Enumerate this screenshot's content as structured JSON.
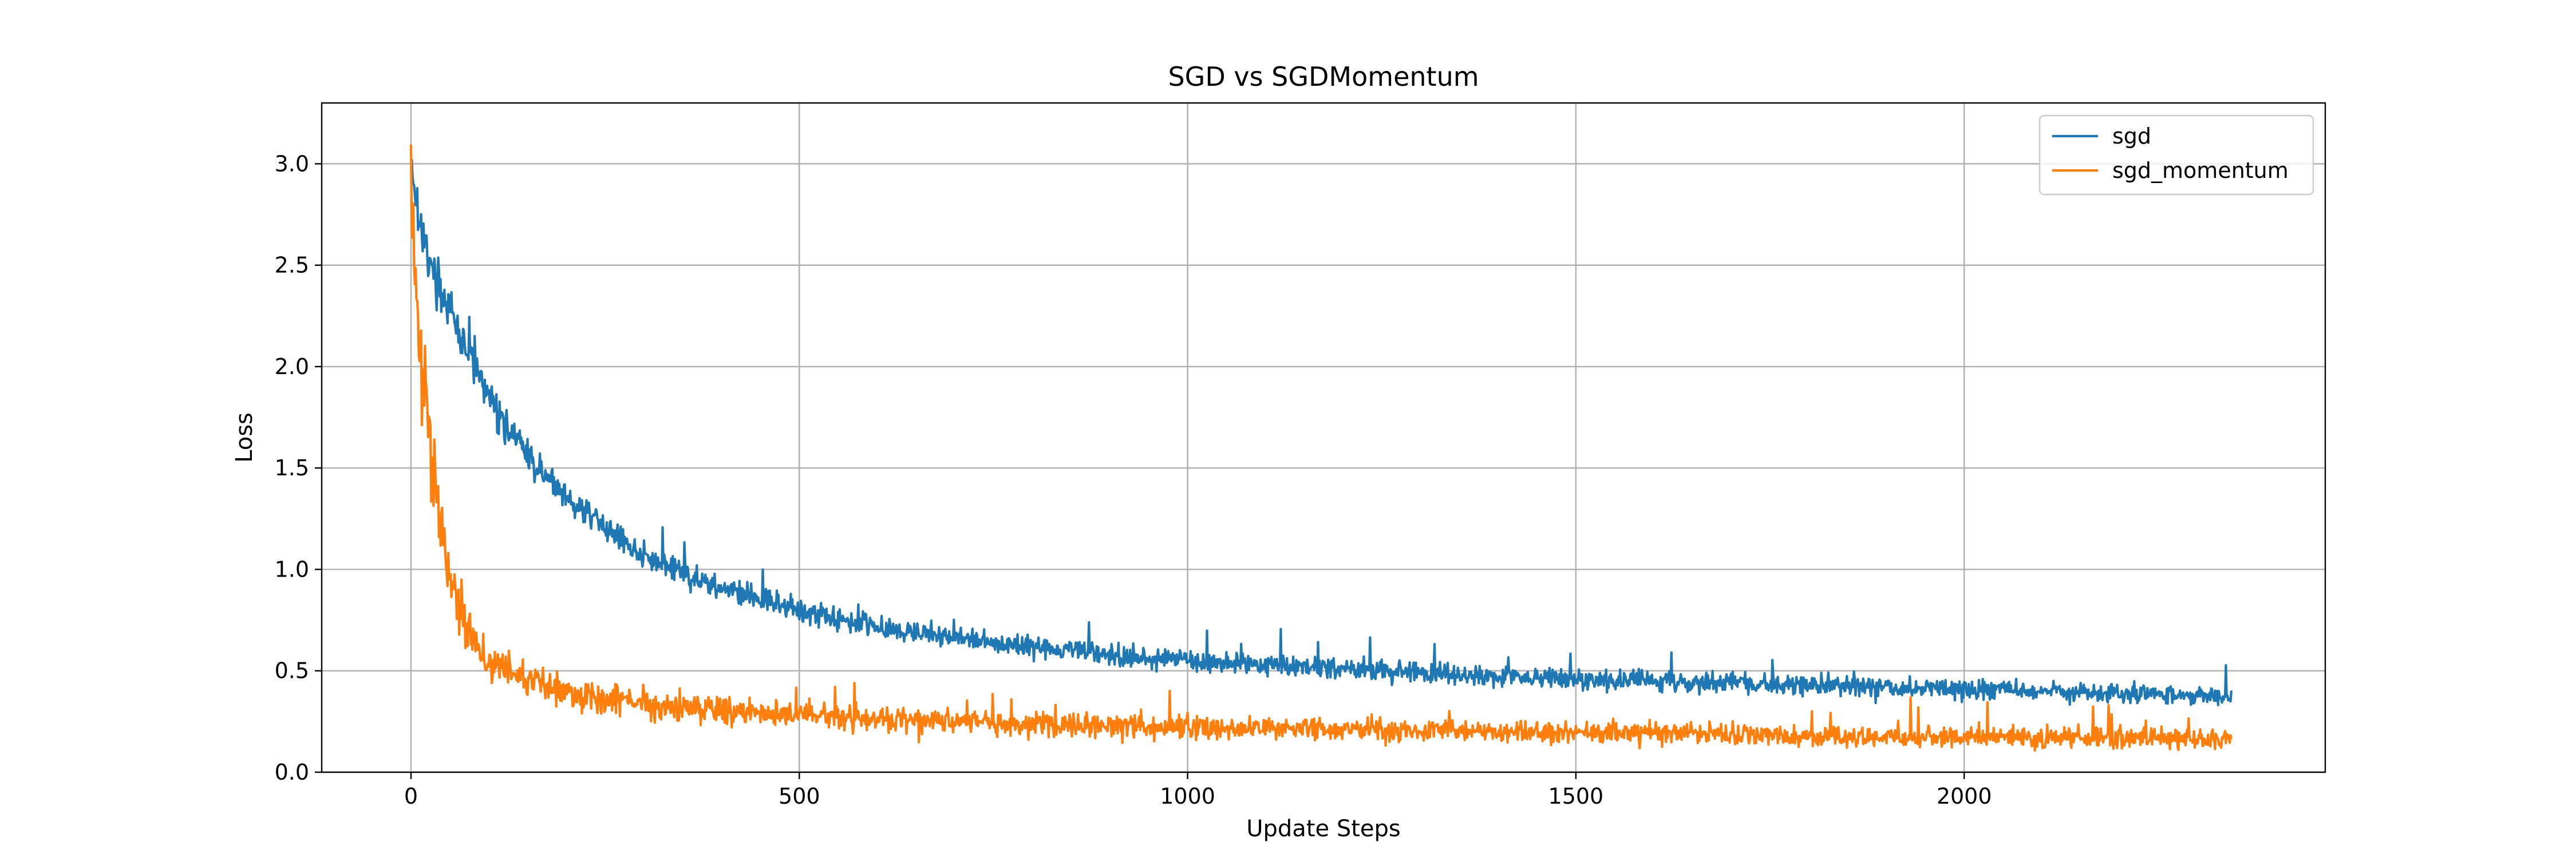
{
  "chart_data": {
    "type": "line",
    "title": "SGD vs SGDMomentum",
    "xlabel": "Update Steps",
    "ylabel": "Loss",
    "xlim": [
      -115,
      2465
    ],
    "ylim": [
      0.0,
      3.3
    ],
    "xticks": [
      0,
      500,
      1000,
      1500,
      2000
    ],
    "yticks": [
      0.0,
      0.5,
      1.0,
      1.5,
      2.0,
      2.5,
      3.0
    ],
    "xtick_labels": [
      "0",
      "500",
      "1000",
      "1500",
      "2000"
    ],
    "ytick_labels": [
      "0.0",
      "0.5",
      "1.0",
      "1.5",
      "2.0",
      "2.5",
      "3.0"
    ],
    "grid": true,
    "legend_position": "top-right",
    "x_range": [
      0,
      2344
    ],
    "series": [
      {
        "name": "sgd",
        "color": "#1f77b4",
        "x": [
          0,
          10,
          25,
          50,
          75,
          100,
          150,
          200,
          250,
          300,
          350,
          400,
          450,
          500,
          600,
          700,
          800,
          900,
          1000,
          1100,
          1200,
          1300,
          1400,
          1500,
          1600,
          1700,
          1800,
          1900,
          2000,
          2100,
          2200,
          2300,
          2344
        ],
        "values": [
          3.02,
          2.75,
          2.48,
          2.28,
          2.05,
          1.85,
          1.55,
          1.36,
          1.2,
          1.07,
          0.98,
          0.91,
          0.85,
          0.8,
          0.72,
          0.66,
          0.62,
          0.58,
          0.55,
          0.53,
          0.51,
          0.49,
          0.47,
          0.46,
          0.45,
          0.44,
          0.43,
          0.42,
          0.41,
          0.4,
          0.39,
          0.38,
          0.38
        ]
      },
      {
        "name": "sgd_momentum",
        "color": "#ff7f0e",
        "x": [
          0,
          5,
          10,
          20,
          30,
          40,
          50,
          60,
          75,
          100,
          150,
          200,
          300,
          400,
          500,
          600,
          700,
          800,
          900,
          1000,
          1200,
          1400,
          1600,
          1800,
          2000,
          2200,
          2344
        ],
        "values": [
          2.95,
          2.4,
          2.1,
          1.8,
          1.5,
          1.2,
          0.98,
          0.82,
          0.68,
          0.55,
          0.46,
          0.4,
          0.34,
          0.3,
          0.28,
          0.26,
          0.25,
          0.24,
          0.23,
          0.22,
          0.21,
          0.2,
          0.19,
          0.18,
          0.17,
          0.17,
          0.16
        ]
      }
    ]
  }
}
